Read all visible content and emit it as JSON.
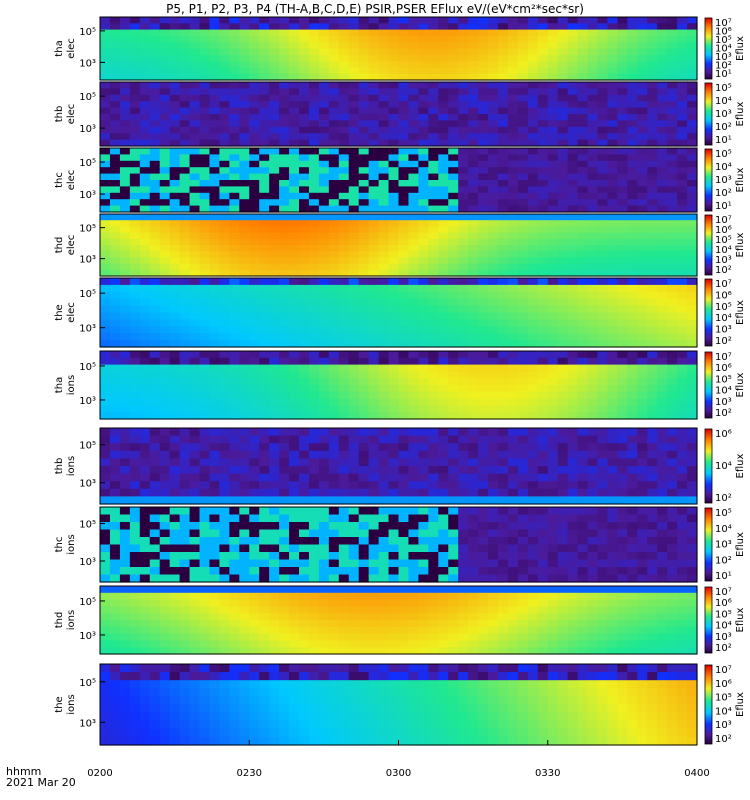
{
  "title": "P5, P1, P2, P3, P4 (TH-A,B,C,D,E) PSIR,PSER EFlux eV/(eV*cm²*sec*sr)",
  "x_label_line1": "hhmm",
  "x_label_line2": "2021 Mar 20",
  "chart_data": {
    "type": "heatmap",
    "x_ticks": [
      "0200",
      "0230",
      "0300",
      "0330",
      "0400"
    ],
    "x_range": [
      "0200",
      "0400"
    ],
    "colorbar_label": "Eflux",
    "panels": [
      {
        "probe": "tha",
        "species": "elec",
        "y_ticks": [
          "10⁵",
          "10³"
        ],
        "cb_ticks": [
          "10⁷",
          "10⁶",
          "10⁵",
          "10⁴",
          "10³",
          "10²",
          "10¹"
        ]
      },
      {
        "probe": "thb",
        "species": "elec",
        "y_ticks": [
          "10⁵",
          "10³"
        ],
        "cb_ticks": [
          "10⁵",
          "10⁴",
          "10³",
          "10²",
          "10¹"
        ]
      },
      {
        "probe": "thc",
        "species": "elec",
        "y_ticks": [
          "10⁵",
          "10³"
        ],
        "cb_ticks": [
          "10⁵",
          "10⁴",
          "10³",
          "10²",
          "10¹"
        ]
      },
      {
        "probe": "thd",
        "species": "elec",
        "y_ticks": [
          "10⁵",
          "10³"
        ],
        "cb_ticks": [
          "10⁷",
          "10⁶",
          "10⁵",
          "10⁴",
          "10³",
          "10²"
        ]
      },
      {
        "probe": "the",
        "species": "elec",
        "y_ticks": [
          "10⁵",
          "10³"
        ],
        "cb_ticks": [
          "10⁷",
          "10⁶",
          "10⁵",
          "10⁴",
          "10³",
          "10²"
        ]
      },
      {
        "probe": "tha",
        "species": "ions",
        "y_ticks": [
          "10⁵",
          "10³"
        ],
        "cb_ticks": [
          "10⁷",
          "10⁶",
          "10⁵",
          "10⁴",
          "10³",
          "10²"
        ]
      },
      {
        "probe": "thb",
        "species": "ions",
        "y_ticks": [
          "10⁵",
          "10³"
        ],
        "cb_ticks": [
          "10⁶",
          "10⁴",
          "10²"
        ]
      },
      {
        "probe": "thc",
        "species": "ions",
        "y_ticks": [
          "10⁵",
          "10³"
        ],
        "cb_ticks": [
          "10⁵",
          "10⁴",
          "10³",
          "10²",
          "10¹"
        ]
      },
      {
        "probe": "thd",
        "species": "ions",
        "y_ticks": [
          "10⁵",
          "10³"
        ],
        "cb_ticks": [
          "10⁷",
          "10⁶",
          "10⁵",
          "10⁴",
          "10³",
          "10²"
        ]
      },
      {
        "probe": "the",
        "species": "ions",
        "y_ticks": [
          "10⁵",
          "10³"
        ],
        "cb_ticks": [
          "10⁷",
          "10⁶",
          "10⁵",
          "10⁴",
          "10³",
          "10²"
        ]
      }
    ]
  }
}
